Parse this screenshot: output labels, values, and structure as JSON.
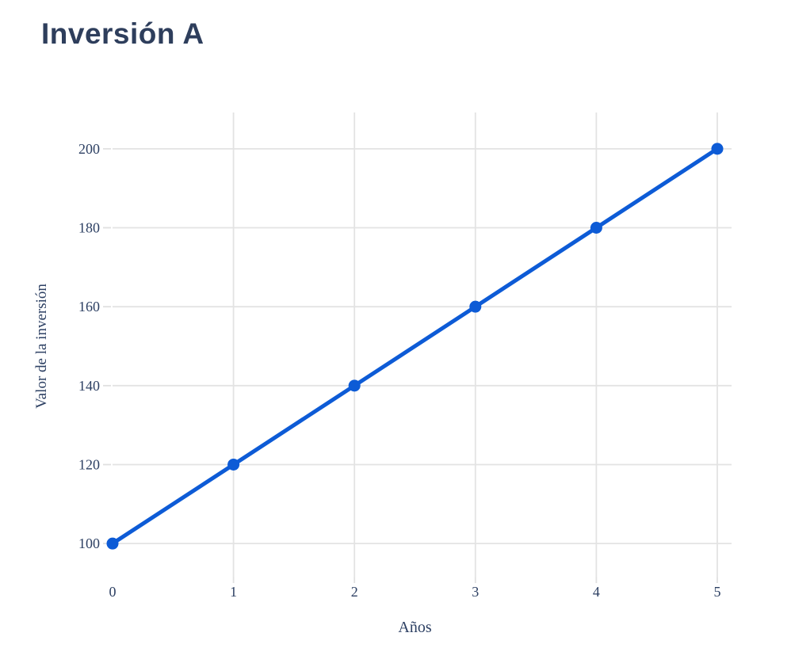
{
  "title": "Inversión A",
  "chart_data": {
    "type": "line",
    "title": "Inversión A",
    "xlabel": "Años",
    "ylabel": "Valor de la inversión",
    "x": [
      0,
      1,
      2,
      3,
      4,
      5
    ],
    "y": [
      100,
      120,
      140,
      160,
      180,
      200
    ],
    "series": [
      {
        "name": "Inversión A",
        "x": [
          0,
          1,
          2,
          3,
          4,
          5
        ],
        "values": [
          100,
          120,
          140,
          160,
          180,
          200
        ]
      }
    ],
    "x_tick_labels": [
      "0",
      "1",
      "2",
      "3",
      "4",
      "5"
    ],
    "x_tick_values": [
      0,
      1,
      2,
      3,
      4,
      5
    ],
    "x_grid_values": [
      1,
      2,
      3,
      4,
      5
    ],
    "y_tick_labels": [
      "100",
      "120",
      "140",
      "160",
      "180",
      "200"
    ],
    "y_tick_values": [
      100,
      120,
      140,
      160,
      180,
      200
    ],
    "xlim": [
      0,
      5.118
    ],
    "ylim": [
      91.4,
      209.2
    ],
    "grid": "on",
    "legend": "none",
    "colors": {
      "line": "#0d5bd6",
      "marker": "#0d5bd6",
      "grid": "#e3e3e3",
      "tick": "#e0e0e0",
      "axis_text": "#2d4063",
      "title_text": "#2e3e5c",
      "background": "#ffffff"
    }
  }
}
